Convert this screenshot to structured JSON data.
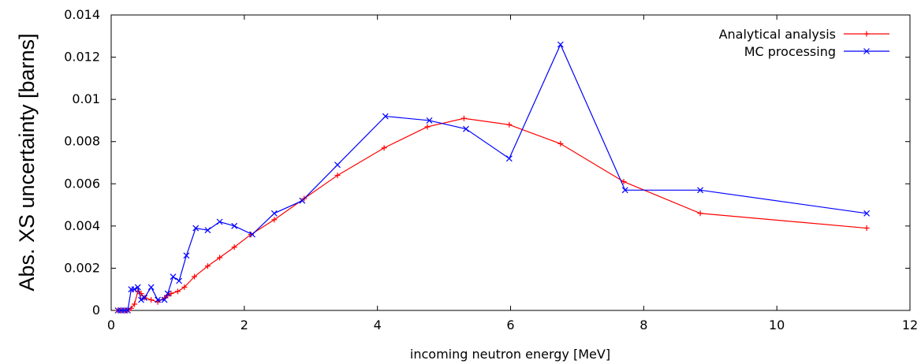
{
  "chart_data": {
    "type": "line",
    "title": "",
    "xlabel": "incoming neutron energy [MeV]",
    "ylabel": "Abs. XS uncertainty [barns]",
    "xlim": [
      0,
      12
    ],
    "ylim": [
      0,
      0.014
    ],
    "x_ticks": [
      0,
      2,
      4,
      6,
      8,
      10,
      12
    ],
    "x_tick_labels": [
      "0",
      "2",
      "4",
      "6",
      "8",
      "10",
      "12"
    ],
    "y_ticks": [
      0,
      0.002,
      0.004,
      0.006,
      0.008,
      0.01,
      0.012,
      0.014
    ],
    "y_tick_labels": [
      "0",
      "0.002",
      "0.004",
      "0.006",
      "0.008",
      "0.01",
      "0.012",
      "0.014"
    ],
    "grid": false,
    "legend_position": "top-right",
    "series": [
      {
        "name": "Analytical analysis",
        "color": "#ff0000",
        "marker": "plus",
        "x": [
          0.1,
          0.15,
          0.2,
          0.25,
          0.3,
          0.35,
          0.4,
          0.45,
          0.5,
          0.6,
          0.7,
          0.8,
          0.85,
          0.9,
          1.0,
          1.1,
          1.25,
          1.45,
          1.63,
          1.85,
          2.1,
          2.45,
          2.9,
          3.4,
          4.1,
          4.75,
          5.3,
          5.98,
          6.75,
          7.7,
          8.85,
          11.35
        ],
        "y": [
          0.0,
          0.0,
          0.0,
          0.0,
          0.0001,
          0.0003,
          0.0009,
          0.0008,
          0.0006,
          0.0005,
          0.0004,
          0.0006,
          0.0007,
          0.0008,
          0.0009,
          0.0011,
          0.0016,
          0.0021,
          0.0025,
          0.003,
          0.0036,
          0.0043,
          0.0053,
          0.0064,
          0.0077,
          0.0087,
          0.0091,
          0.0088,
          0.0079,
          0.0061,
          0.0046,
          0.0039
        ]
      },
      {
        "name": "MC processing",
        "color": "#0000ff",
        "marker": "cross",
        "x": [
          0.1,
          0.15,
          0.2,
          0.25,
          0.3,
          0.35,
          0.4,
          0.45,
          0.5,
          0.6,
          0.7,
          0.8,
          0.85,
          0.93,
          1.02,
          1.13,
          1.27,
          1.45,
          1.63,
          1.85,
          2.12,
          2.45,
          2.87,
          3.4,
          4.12,
          4.78,
          5.33,
          5.98,
          6.75,
          7.72,
          8.85,
          11.35
        ],
        "y": [
          0.0,
          0.0,
          0.0,
          0.0,
          0.001,
          0.001,
          0.0011,
          0.0005,
          0.0006,
          0.0011,
          0.0005,
          0.0005,
          0.0008,
          0.0016,
          0.0014,
          0.0026,
          0.0039,
          0.0038,
          0.0042,
          0.004,
          0.0036,
          0.0046,
          0.0052,
          0.0069,
          0.0092,
          0.009,
          0.0086,
          0.0072,
          0.0126,
          0.0057,
          0.0057,
          0.0046
        ]
      }
    ]
  }
}
